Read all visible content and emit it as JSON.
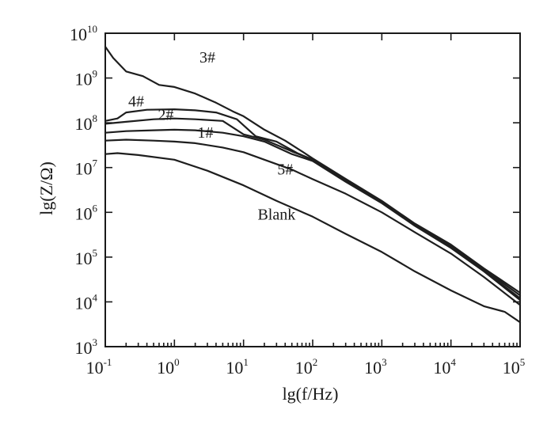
{
  "chart_data": {
    "type": "line",
    "title": "",
    "xlabel": "lg(f/Hz)",
    "ylabel": "lg(Z/Ω)",
    "x_scale": "log",
    "y_scale": "log",
    "xlim": [
      0.1,
      100000
    ],
    "ylim": [
      1000,
      10000000000
    ],
    "x_ticks": [
      {
        "value": 0.1,
        "base": "10",
        "exp": "-1"
      },
      {
        "value": 1,
        "base": "10",
        "exp": "0"
      },
      {
        "value": 10,
        "base": "10",
        "exp": "1"
      },
      {
        "value": 100,
        "base": "10",
        "exp": "2"
      },
      {
        "value": 1000,
        "base": "10",
        "exp": "3"
      },
      {
        "value": 10000,
        "base": "10",
        "exp": "4"
      },
      {
        "value": 100000,
        "base": "10",
        "exp": "5"
      }
    ],
    "y_ticks": [
      {
        "value": 1000,
        "base": "10",
        "exp": "3"
      },
      {
        "value": 10000,
        "base": "10",
        "exp": "4"
      },
      {
        "value": 100000,
        "base": "10",
        "exp": "5"
      },
      {
        "value": 1000000,
        "base": "10",
        "exp": "6"
      },
      {
        "value": 10000000,
        "base": "10",
        "exp": "7"
      },
      {
        "value": 100000000,
        "base": "10",
        "exp": "8"
      },
      {
        "value": 1000000000,
        "base": "10",
        "exp": "9"
      },
      {
        "value": 10000000000,
        "base": "10",
        "exp": "10"
      }
    ],
    "grid": false,
    "legend": "none",
    "series": [
      {
        "name": "3#",
        "label_at": [
          3.0,
          2200000000
        ],
        "points": [
          [
            0.1,
            5000000000.0
          ],
          [
            0.13,
            2800000000.0
          ],
          [
            0.2,
            1400000000.0
          ],
          [
            0.35,
            1100000000.0
          ],
          [
            0.6,
            700000000.0
          ],
          [
            1,
            630000000.0
          ],
          [
            2,
            450000000.0
          ],
          [
            4,
            280000000.0
          ],
          [
            7,
            180000000.0
          ],
          [
            10,
            140000000.0
          ],
          [
            20,
            70000000.0
          ],
          [
            40,
            40000000.0
          ],
          [
            70,
            23000000.0
          ],
          [
            100,
            16000000.0
          ],
          [
            300,
            5600000.0
          ],
          [
            1000,
            1800000.0
          ],
          [
            3000,
            560000.0
          ],
          [
            10000,
            190000.0
          ],
          [
            30000,
            56000.0
          ],
          [
            100000,
            16000.0
          ]
        ]
      },
      {
        "name": "4#",
        "label_at": [
          0.28,
          230000000
        ],
        "points": [
          [
            0.1,
            110000000.0
          ],
          [
            0.15,
            125000000.0
          ],
          [
            0.2,
            170000000.0
          ],
          [
            0.4,
            195000000.0
          ],
          [
            1,
            200000000.0
          ],
          [
            2,
            190000000.0
          ],
          [
            4,
            170000000.0
          ],
          [
            8,
            120000000.0
          ],
          [
            15,
            50000000.0
          ],
          [
            30,
            38000000.0
          ],
          [
            60,
            21000000.0
          ],
          [
            100,
            15000000.0
          ],
          [
            300,
            5300000.0
          ],
          [
            1000,
            1700000.0
          ],
          [
            3000,
            550000.0
          ],
          [
            10000,
            180000.0
          ],
          [
            30000,
            53000.0
          ],
          [
            100000,
            14000.0
          ]
        ]
      },
      {
        "name": "2#",
        "label_at": [
          0.75,
          115000000
        ],
        "points": [
          [
            0.1,
            95000000.0
          ],
          [
            0.2,
            105000000.0
          ],
          [
            0.5,
            120000000.0
          ],
          [
            1,
            125000000.0
          ],
          [
            2,
            120000000.0
          ],
          [
            5,
            110000000.0
          ],
          [
            10,
            55000000.0
          ],
          [
            20,
            42000000.0
          ],
          [
            50,
            23000000.0
          ],
          [
            100,
            15000000.0
          ],
          [
            300,
            5200000.0
          ],
          [
            1000,
            1650000.0
          ],
          [
            3000,
            520000.0
          ],
          [
            10000,
            170000.0
          ],
          [
            30000,
            50000.0
          ],
          [
            100000,
            12000.0
          ]
        ]
      },
      {
        "name": "1#",
        "label_at": [
          2.8,
          46000000
        ],
        "points": [
          [
            0.1,
            60000000.0
          ],
          [
            0.2,
            65000000.0
          ],
          [
            0.5,
            68000000.0
          ],
          [
            1,
            70000000.0
          ],
          [
            2,
            68000000.0
          ],
          [
            5,
            60000000.0
          ],
          [
            10,
            50000000.0
          ],
          [
            20,
            38000000.0
          ],
          [
            50,
            20000000.0
          ],
          [
            100,
            14000000.0
          ],
          [
            300,
            4800000.0
          ],
          [
            1000,
            1600000.0
          ],
          [
            3000,
            500000.0
          ],
          [
            10000,
            160000.0
          ],
          [
            30000,
            48000.0
          ],
          [
            100000,
            11000.0
          ]
        ]
      },
      {
        "name": "5#",
        "label_at": [
          40,
          7000000
        ],
        "points": [
          [
            0.1,
            40000000.0
          ],
          [
            0.2,
            42000000.0
          ],
          [
            0.5,
            40000000.0
          ],
          [
            1,
            38000000.0
          ],
          [
            2,
            35000000.0
          ],
          [
            5,
            28000000.0
          ],
          [
            10,
            22000000.0
          ],
          [
            20,
            15000000.0
          ],
          [
            50,
            9000000.0
          ],
          [
            100,
            5500000.0
          ],
          [
            300,
            2600000.0
          ],
          [
            1000,
            1000000.0
          ],
          [
            3000,
            360000.0
          ],
          [
            10000,
            120000.0
          ],
          [
            30000,
            36000.0
          ],
          [
            100000,
            8500.0
          ]
        ]
      },
      {
        "name": "Blank",
        "label_at": [
          30,
          690000
        ],
        "points": [
          [
            0.1,
            20000000.0
          ],
          [
            0.15,
            21000000.0
          ],
          [
            0.3,
            19000000.0
          ],
          [
            1,
            15000000.0
          ],
          [
            3,
            8500000.0
          ],
          [
            10,
            4000000.0
          ],
          [
            30,
            1800000.0
          ],
          [
            100,
            800000.0
          ],
          [
            300,
            330000.0
          ],
          [
            1000,
            130000.0
          ],
          [
            3000,
            48000.0
          ],
          [
            10000,
            18000.0
          ],
          [
            30000,
            8000.0
          ],
          [
            60000,
            6000.0
          ],
          [
            100000,
            3500.0
          ]
        ]
      }
    ]
  }
}
